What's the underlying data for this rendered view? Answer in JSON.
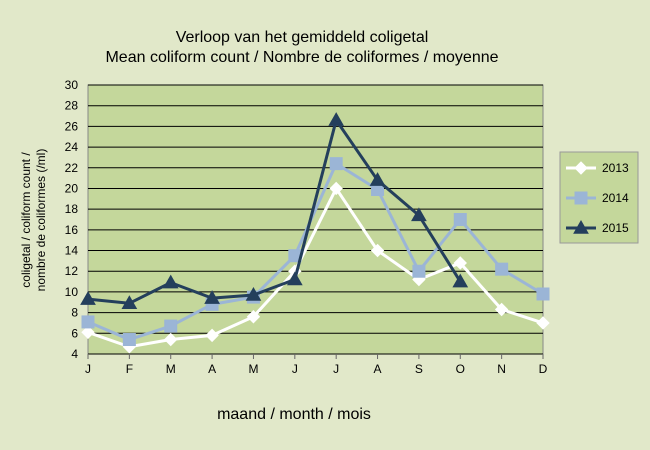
{
  "chart_data": {
    "type": "line",
    "title": [
      "Verloop van het gemiddeld coligetal",
      "Mean coliform count / Nombre de coliformes / moyenne"
    ],
    "xlabel": "maand / month / mois",
    "ylabel": [
      "coligetal / coliform count /",
      "nombre de coliformes (/ml)"
    ],
    "categories": [
      "J",
      "F",
      "M",
      "A",
      "M",
      "J",
      "J",
      "A",
      "S",
      "O",
      "N",
      "D"
    ],
    "ylim": [
      4,
      30
    ],
    "yticks": [
      "4",
      "6",
      "8",
      "10",
      "12",
      "14",
      "16",
      "18",
      "20",
      "22",
      "24",
      "26",
      "28",
      "30"
    ],
    "grid": true,
    "legend_position": "right",
    "plot_background": "#c4d79b",
    "background": "#e1e8c9",
    "series": [
      {
        "name": "2013",
        "color": "#ffffff",
        "marker": "diamond",
        "values": [
          6.1,
          4.7,
          5.4,
          5.8,
          7.6,
          12.0,
          20.0,
          14.0,
          11.2,
          12.8,
          8.3,
          7.0
        ]
      },
      {
        "name": "2014",
        "color": "#9bb5d6",
        "marker": "square",
        "values": [
          7.1,
          5.4,
          6.7,
          8.8,
          9.5,
          13.5,
          22.4,
          19.9,
          12.0,
          17.0,
          12.2,
          9.8
        ]
      },
      {
        "name": "2015",
        "color": "#243f5c",
        "marker": "triangle",
        "values": [
          9.3,
          8.9,
          10.9,
          9.4,
          9.7,
          11.2,
          26.6,
          20.8,
          17.4,
          11.0,
          null,
          null
        ]
      }
    ]
  }
}
